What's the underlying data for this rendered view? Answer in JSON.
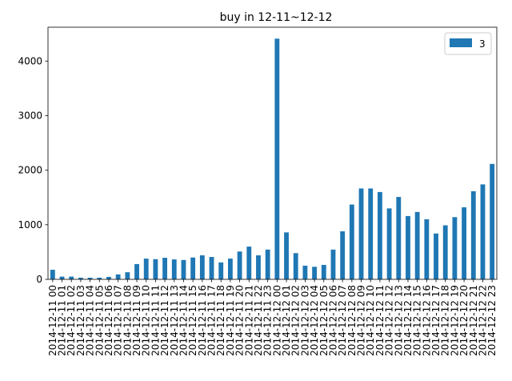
{
  "chart_data": {
    "type": "bar",
    "title": "buy in 12-11~12-12",
    "xlabel": "",
    "ylabel": "",
    "ylim": [
      0,
      4620
    ],
    "yticks": [
      0,
      1000,
      2000,
      3000,
      4000
    ],
    "grid": false,
    "legend_position": "top-right",
    "bar_color": "#1f77b4",
    "categories": [
      "2014-12-11 00",
      "2014-12-11 01",
      "2014-12-11 02",
      "2014-12-11 03",
      "2014-12-11 04",
      "2014-12-11 05",
      "2014-12-11 06",
      "2014-12-11 07",
      "2014-12-11 08",
      "2014-12-11 09",
      "2014-12-11 10",
      "2014-12-11 11",
      "2014-12-11 12",
      "2014-12-11 13",
      "2014-12-11 14",
      "2014-12-11 15",
      "2014-12-11 16",
      "2014-12-11 17",
      "2014-12-11 18",
      "2014-12-11 19",
      "2014-12-11 20",
      "2014-12-11 21",
      "2014-12-11 22",
      "2014-12-11 23",
      "2014-12-12 00",
      "2014-12-12 01",
      "2014-12-12 02",
      "2014-12-12 03",
      "2014-12-12 04",
      "2014-12-12 05",
      "2014-12-12 06",
      "2014-12-12 07",
      "2014-12-12 08",
      "2014-12-12 09",
      "2014-12-12 10",
      "2014-12-12 11",
      "2014-12-12 12",
      "2014-12-12 13",
      "2014-12-12 14",
      "2014-12-12 15",
      "2014-12-12 16",
      "2014-12-12 17",
      "2014-12-12 18",
      "2014-12-12 19",
      "2014-12-12 20",
      "2014-12-12 21",
      "2014-12-12 22",
      "2014-12-12 23"
    ],
    "series": [
      {
        "name": "3",
        "values": [
          175,
          50,
          50,
          30,
          30,
          30,
          45,
          90,
          130,
          280,
          380,
          370,
          395,
          365,
          355,
          400,
          440,
          410,
          310,
          380,
          510,
          600,
          440,
          545,
          4410,
          860,
          480,
          250,
          230,
          265,
          545,
          880,
          1370,
          1665,
          1665,
          1600,
          1300,
          1510,
          1160,
          1235,
          1100,
          840,
          990,
          1140,
          1320,
          1615,
          1740,
          2115
        ]
      }
    ]
  }
}
